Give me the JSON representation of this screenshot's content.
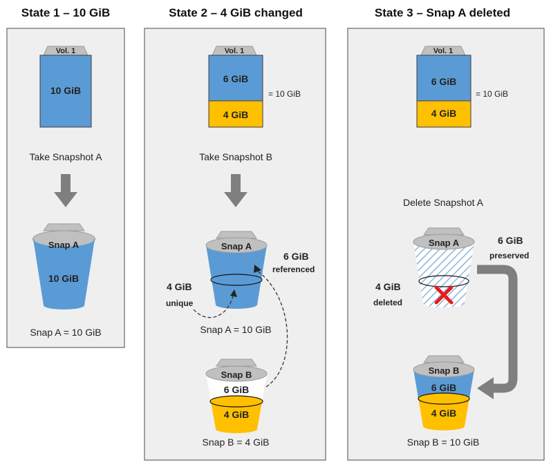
{
  "colors": {
    "panel_fill": "#efefef",
    "panel_stroke": "#4a4a4a",
    "blue": "#5b9bd5",
    "gold": "#ffc000",
    "gray": "#c0c0c0",
    "arrow": "#7f7f7f",
    "red": "#e81c1c"
  },
  "state1": {
    "heading": "State 1 – 10 GiB",
    "volume_tab": "Vol. 1",
    "volume_value": "10 GiB",
    "action": "Take Snapshot A",
    "snapshot_label": "Snap A",
    "snapshot_value": "10 GiB",
    "summary": "Snap A = 10 GiB"
  },
  "state2": {
    "heading": "State 2 – 4 GiB changed",
    "volume_tab": "Vol. 1",
    "volume_top": "6 GiB",
    "volume_bottom": "4 GiB",
    "volume_total": "= 10 GiB",
    "action": "Take Snapshot B",
    "snapA_label": "Snap A",
    "referenced_value": "6 GiB",
    "referenced_text": "referenced",
    "unique_value": "4 GiB",
    "unique_text": "unique",
    "snapA_summary": "Snap A = 10 GiB",
    "snapB_label": "Snap B",
    "snapB_top": "6 GiB",
    "snapB_bottom": "4 GiB",
    "snapB_summary": "Snap B = 4 GiB"
  },
  "state3": {
    "heading": "State 3 – Snap A deleted",
    "volume_tab": "Vol. 1",
    "volume_top": "6 GiB",
    "volume_bottom": "4 GiB",
    "volume_total": "= 10 GiB",
    "action": "Delete Snapshot A",
    "snapA_label": "Snap A",
    "preserved_value": "6 GiB",
    "preserved_text": "preserved",
    "deleted_value": "4 GiB",
    "deleted_text": "deleted",
    "snapB_label": "Snap B",
    "snapB_top": "6 GiB",
    "snapB_bottom": "4 GiB",
    "snapB_summary": "Snap B = 10 GiB"
  }
}
